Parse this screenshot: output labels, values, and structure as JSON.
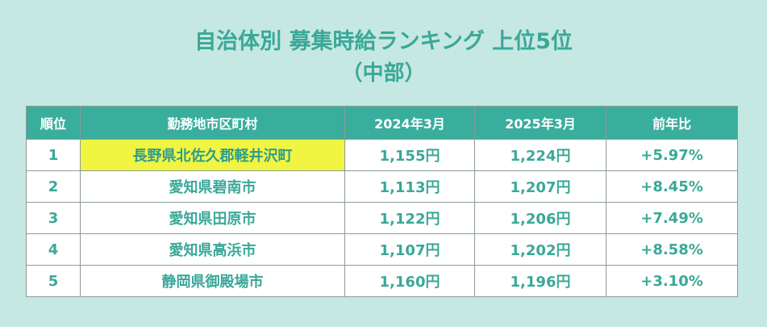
{
  "title": {
    "line1": "自治体別 募集時給ランキング 上位5位",
    "line2": "（中部）"
  },
  "table": {
    "headers": [
      "順位",
      "勤務地市区町村",
      "2024年3月",
      "2025年3月",
      "前年比"
    ],
    "rows": [
      {
        "rank": "1",
        "city": "長野県北佐久郡軽井沢町",
        "wage_2024": "1,155円",
        "wage_2025": "1,224円",
        "yoy": "+5.97%",
        "highlight": true
      },
      {
        "rank": "2",
        "city": "愛知県碧南市",
        "wage_2024": "1,113円",
        "wage_2025": "1,207円",
        "yoy": "+8.45%",
        "highlight": false
      },
      {
        "rank": "3",
        "city": "愛知県田原市",
        "wage_2024": "1,122円",
        "wage_2025": "1,206円",
        "yoy": "+7.49%",
        "highlight": false
      },
      {
        "rank": "4",
        "city": "愛知県高浜市",
        "wage_2024": "1,107円",
        "wage_2025": "1,202円",
        "yoy": "+8.58%",
        "highlight": false
      },
      {
        "rank": "5",
        "city": "静岡県御殿場市",
        "wage_2024": "1,160円",
        "wage_2025": "1,196円",
        "yoy": "+3.10%",
        "highlight": false
      }
    ]
  },
  "colors": {
    "background": "#c6e8e2",
    "accent": "#3aa898",
    "header_bg": "#3aae9d",
    "highlight": "#f1f542"
  }
}
